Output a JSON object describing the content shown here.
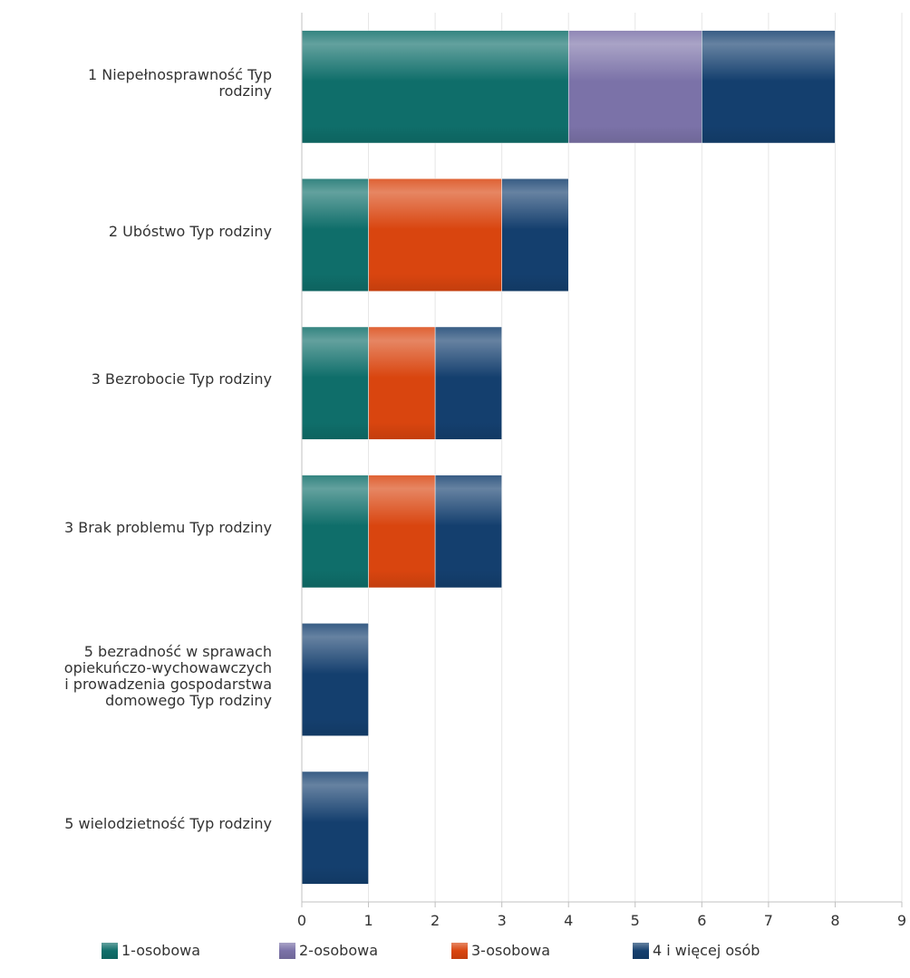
{
  "chart_data": {
    "type": "bar",
    "orientation": "horizontal",
    "stacked": true,
    "categories": [
      "1 Niepełnosprawność Typ\nrodziny",
      "2 Ubóstwo Typ rodziny",
      "3 Bezrobocie Typ rodziny",
      "3 Brak problemu Typ rodziny",
      "5 bezradność w sprawach\nopiekuńczo-wychowawczych\ni prowadzenia gospodarstwa\ndomowego Typ rodziny",
      "5 wielodzietność Typ rodziny"
    ],
    "series": [
      {
        "name": "1-osobowa",
        "color": "#0f6e6a",
        "values": [
          4,
          1,
          1,
          1,
          0,
          0
        ]
      },
      {
        "name": "2-osobowa",
        "color": "#7b72a8",
        "values": [
          2,
          0,
          0,
          0,
          0,
          0
        ]
      },
      {
        "name": "3-osobowa",
        "color": "#d9450f",
        "values": [
          0,
          2,
          1,
          1,
          0,
          0
        ]
      },
      {
        "name": "4  i więcej osób",
        "color": "#143f6e",
        "values": [
          2,
          1,
          1,
          1,
          1,
          1
        ]
      }
    ],
    "xlim": [
      0,
      9
    ],
    "xticks": [
      "0",
      "1",
      "2",
      "3",
      "4",
      "5",
      "6",
      "7",
      "8",
      "9"
    ],
    "grid": "vertical",
    "legend_position": "bottom"
  }
}
